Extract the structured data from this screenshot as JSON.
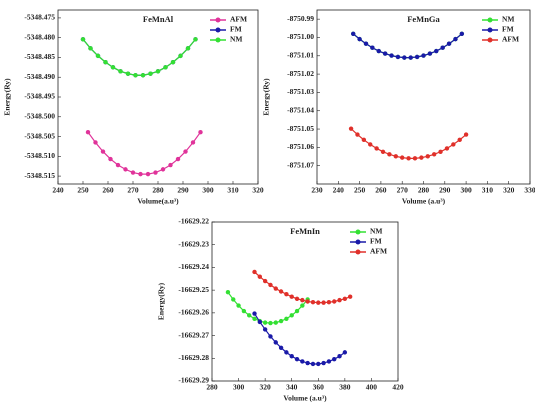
{
  "chart_data": [
    {
      "type": "line",
      "title": "FeMnAl",
      "x_label": "Volume(a.u³)",
      "y_label": "Energy(Ry)",
      "xlim": [
        240,
        320
      ],
      "xticks": [
        240,
        250,
        260,
        270,
        280,
        290,
        300,
        310,
        320
      ],
      "ylim": [
        -5348.517,
        -5348.473
      ],
      "yticks": [
        -5348.475,
        {
          "value": -5348.48,
          "label": "-5348.480"
        },
        -5348.485,
        {
          "value": -5348.49,
          "label": "-5348.490"
        },
        -5348.495,
        {
          "value": -5348.5,
          "label": "-5348.500"
        },
        -5348.505,
        {
          "value": -5348.51,
          "label": "-5348.510"
        },
        -5348.515
      ],
      "legend": "upper right",
      "series": [
        {
          "name": "AFM",
          "color": "#e0339a",
          "x": [
            252,
            255,
            258,
            261,
            264,
            267,
            270,
            273,
            276,
            279,
            282,
            285,
            288,
            291,
            294,
            297
          ],
          "values": [
            -5348.5039,
            -5348.5065,
            -5348.5088,
            -5348.5107,
            -5348.5122,
            -5348.5133,
            -5348.5141,
            -5348.5145,
            -5348.5145,
            -5348.5141,
            -5348.5133,
            -5348.5122,
            -5348.5107,
            -5348.5088,
            -5348.5065,
            -5348.5039
          ]
        },
        {
          "name": "FM",
          "color": "#1a1aa8",
          "x": [
            250,
            253,
            256,
            259,
            262,
            265,
            268,
            271,
            274,
            277,
            280,
            283,
            286,
            289,
            292,
            295
          ],
          "values": [
            -5348.4804,
            -5348.4827,
            -5348.4846,
            -5348.4862,
            -5348.4875,
            -5348.4885,
            -5348.4891,
            -5348.4895,
            -5348.4895,
            -5348.4891,
            -5348.4885,
            -5348.4875,
            -5348.4862,
            -5348.4846,
            -5348.4827,
            -5348.4804
          ]
        },
        {
          "name": "NM",
          "color": "#33e033",
          "x": [
            250,
            253,
            256,
            259,
            262,
            265,
            268,
            271,
            274,
            277,
            280,
            283,
            286,
            289,
            292,
            295
          ],
          "values": [
            -5348.4804,
            -5348.4827,
            -5348.4846,
            -5348.4862,
            -5348.4875,
            -5348.4885,
            -5348.4891,
            -5348.4895,
            -5348.4895,
            -5348.4891,
            -5348.4885,
            -5348.4875,
            -5348.4862,
            -5348.4846,
            -5348.4827,
            -5348.4804
          ]
        }
      ]
    },
    {
      "type": "line",
      "title": "FeMnGa",
      "x_label": "Volume (a.u³)",
      "y_label": "Energy(Ry)",
      "xlim": [
        230,
        330
      ],
      "xticks": [
        230,
        240,
        250,
        260,
        270,
        280,
        290,
        300,
        310,
        320,
        330
      ],
      "ylim": [
        -8751.08,
        -8750.985
      ],
      "yticks": [
        -8750.99,
        {
          "value": -8751,
          "label": "-8751.00"
        },
        -8751.01,
        -8751.02,
        -8751.03,
        -8751.04,
        -8751.05,
        -8751.06,
        -8751.07
      ],
      "legend": "upper right",
      "series": [
        {
          "name": "NM",
          "color": "#33e033",
          "x": [
            247,
            250,
            253,
            256,
            259,
            262,
            265,
            268,
            271,
            274,
            277,
            280,
            283,
            286,
            289,
            292,
            295,
            298
          ],
          "values": [
            -8750.998,
            -8751.0009,
            -8751.0034,
            -8751.0056,
            -8751.0074,
            -8751.0088,
            -8751.0099,
            -8751.0106,
            -8751.011,
            -8751.011,
            -8751.0106,
            -8751.0099,
            -8751.0088,
            -8751.0074,
            -8751.0056,
            -8751.0034,
            -8751.0009,
            -8750.998
          ]
        },
        {
          "name": "FM",
          "color": "#1a1aa8",
          "x": [
            247,
            250,
            253,
            256,
            259,
            262,
            265,
            268,
            271,
            274,
            277,
            280,
            283,
            286,
            289,
            292,
            295,
            298
          ],
          "values": [
            -8750.998,
            -8751.0009,
            -8751.0034,
            -8751.0056,
            -8751.0074,
            -8751.0088,
            -8751.0099,
            -8751.0106,
            -8751.011,
            -8751.011,
            -8751.0106,
            -8751.0099,
            -8751.0088,
            -8751.0074,
            -8751.0056,
            -8751.0034,
            -8751.0009,
            -8750.998
          ]
        },
        {
          "name": "AFM",
          "color": "#e0302a",
          "x": [
            246,
            249,
            252,
            255,
            258,
            261,
            264,
            267,
            270,
            273,
            276,
            279,
            282,
            285,
            288,
            291,
            294,
            297,
            300
          ],
          "values": [
            -8751.0498,
            -8751.053,
            -8751.0559,
            -8751.0584,
            -8751.0606,
            -8751.0624,
            -8751.0638,
            -8751.0649,
            -8751.0656,
            -8751.066,
            -8751.066,
            -8751.0656,
            -8751.0649,
            -8751.0638,
            -8751.0624,
            -8751.0606,
            -8751.0584,
            -8751.0559,
            -8751.053
          ]
        }
      ]
    },
    {
      "type": "line",
      "title": "FeMnIn",
      "x_label": "Volume (a.u³)",
      "y_label": "Energy(Ry)",
      "xlim": [
        280,
        420
      ],
      "xticks": [
        280,
        300,
        320,
        340,
        360,
        380,
        400,
        420
      ],
      "ylim": [
        -16629.29,
        -16629.22
      ],
      "yticks": [
        -16629.22,
        -16629.23,
        -16629.24,
        -16629.25,
        -16629.26,
        -16629.27,
        -16629.28,
        -16629.29
      ],
      "legend": "upper right",
      "series": [
        {
          "name": "NM",
          "color": "#33e033",
          "x": [
            292,
            296,
            300,
            304,
            308,
            312,
            316,
            320,
            324,
            328,
            332,
            336,
            340,
            344,
            348,
            352
          ],
          "values": [
            -16629.2509,
            -16629.2541,
            -16629.2568,
            -16629.2592,
            -16629.2611,
            -16629.2626,
            -16629.2636,
            -16629.2643,
            -16629.2645,
            -16629.2643,
            -16629.2636,
            -16629.2626,
            -16629.2611,
            -16629.2592,
            -16629.2568,
            -16629.2541
          ]
        },
        {
          "name": "FM",
          "color": "#1a1aa8",
          "x": [
            312,
            316,
            320,
            324,
            328,
            332,
            336,
            340,
            344,
            348,
            352,
            356,
            360,
            364,
            368,
            372,
            376,
            380
          ],
          "values": [
            -16629.2603,
            -16629.264,
            -16629.2673,
            -16629.2704,
            -16629.273,
            -16629.2754,
            -16629.2774,
            -16629.2791,
            -16629.2804,
            -16629.2814,
            -16629.2821,
            -16629.2825,
            -16629.2825,
            -16629.2821,
            -16629.2814,
            -16629.2804,
            -16629.2791,
            -16629.2774
          ]
        },
        {
          "name": "AFM",
          "color": "#e0302a",
          "x": [
            312,
            316,
            320,
            324,
            328,
            332,
            336,
            340,
            344,
            348,
            352,
            356,
            360,
            364,
            368,
            372,
            376,
            380,
            384
          ],
          "values": [
            -16629.242,
            -16629.2441,
            -16629.246,
            -16629.2477,
            -16629.2493,
            -16629.2506,
            -16629.2518,
            -16629.2529,
            -16629.2538,
            -16629.2544,
            -16629.255,
            -16629.2553,
            -16629.2555,
            -16629.2555,
            -16629.2553,
            -16629.255,
            -16629.2544,
            -16629.2538,
            -16629.2529
          ]
        }
      ]
    }
  ]
}
